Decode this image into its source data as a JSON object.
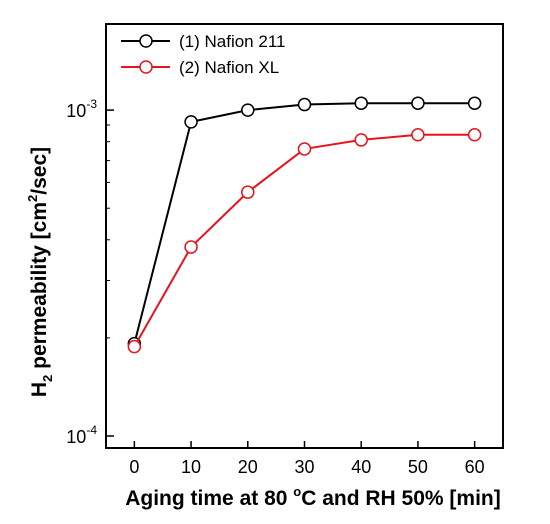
{
  "chart_data": {
    "type": "line",
    "xlabel": {
      "main": "Aging time at 80 ",
      "deg": "o",
      "rest": "C and RH 50% [min]"
    },
    "ylabel": {
      "h": "H",
      "sub": "2",
      "mid": " permeability [cm",
      "sup": "2",
      "end": "/sec]"
    },
    "x_ticks": [
      0,
      10,
      20,
      30,
      40,
      50,
      60
    ],
    "x_tick_labels": [
      "0",
      "10",
      "20",
      "30",
      "40",
      "50",
      "60"
    ],
    "xlim": [
      -5,
      65
    ],
    "y_scale": "log",
    "ylim": [
      0.0001,
      0.002
    ],
    "y_tick_labels": [
      {
        "value": 0.001,
        "base": "10",
        "exp": "-3"
      },
      {
        "value": 0.0001,
        "base": "10",
        "exp": "-4"
      }
    ],
    "x": [
      0,
      10,
      20,
      30,
      40,
      50,
      60
    ],
    "series": [
      {
        "name": "(1) Nafion 211",
        "color": "#000000",
        "marker": "open-circle",
        "values": [
          0.000192,
          0.00092,
          0.001,
          0.00104,
          0.00105,
          0.00105,
          0.00105
        ]
      },
      {
        "name": "(2) Nafion XL",
        "color": "#e8141c",
        "marker": "open-circle",
        "values": [
          0.000188,
          0.00038,
          0.00056,
          0.00076,
          0.00081,
          0.00084,
          0.00084
        ]
      }
    ],
    "legend_position": "top-left",
    "grid": false
  }
}
